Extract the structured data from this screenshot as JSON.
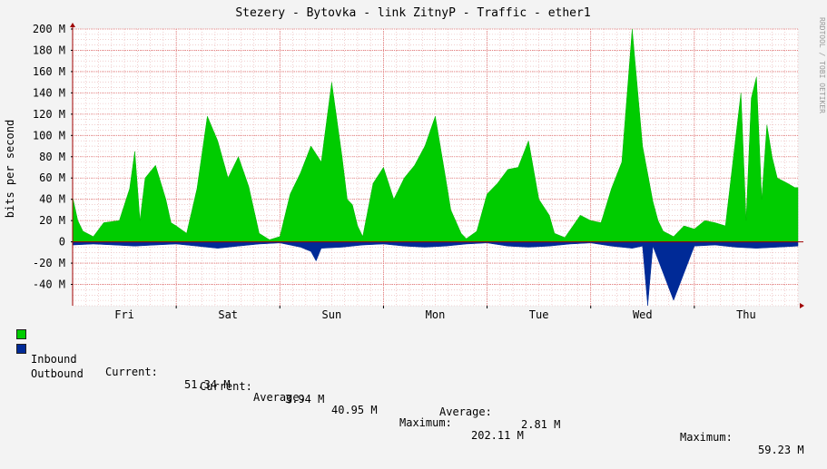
{
  "chart_data": {
    "type": "area",
    "title": "Stezery - Bytovka - link ZitnyP - Traffic - ether1",
    "ylabel": "bits per second",
    "watermark": "RRDTOOL / TOBI OETIKER",
    "yticks": [
      "200 M",
      "180 M",
      "160 M",
      "140 M",
      "120 M",
      "100 M",
      "80 M",
      "60 M",
      "40 M",
      "20 M",
      "0",
      "-20 M",
      "-40 M"
    ],
    "ytick_values": [
      200,
      180,
      160,
      140,
      120,
      100,
      80,
      60,
      40,
      20,
      0,
      -20,
      -40
    ],
    "ylim": [
      -60,
      200
    ],
    "xlim": [
      0,
      7
    ],
    "day_labels": [
      "Fri",
      "Sat",
      "Sun",
      "Mon",
      "Tue",
      "Wed",
      "Thu"
    ],
    "day_label_positions": [
      0.5,
      1.5,
      2.5,
      3.5,
      4.5,
      5.5,
      6.5
    ],
    "grid": true,
    "colors": {
      "inbound": "#00cc00",
      "outbound": "#002a97",
      "grid": "#e8b0b0",
      "axis": "#a00000",
      "background": "#ffffff",
      "canvas": "#f3f3f3"
    },
    "series": [
      {
        "name": "Inbound",
        "x": [
          0.0,
          0.05,
          0.1,
          0.2,
          0.3,
          0.45,
          0.55,
          0.6,
          0.65,
          0.7,
          0.8,
          0.9,
          0.95,
          1.0,
          1.1,
          1.2,
          1.3,
          1.4,
          1.5,
          1.6,
          1.7,
          1.8,
          1.9,
          2.0,
          2.1,
          2.2,
          2.3,
          2.4,
          2.5,
          2.6,
          2.65,
          2.7,
          2.75,
          2.8,
          2.9,
          3.0,
          3.1,
          3.2,
          3.3,
          3.4,
          3.5,
          3.6,
          3.65,
          3.75,
          3.8,
          3.9,
          4.0,
          4.1,
          4.2,
          4.3,
          4.4,
          4.5,
          4.6,
          4.65,
          4.75,
          4.9,
          5.0,
          5.1,
          5.2,
          5.3,
          5.4,
          5.5,
          5.6,
          5.65,
          5.7,
          5.8,
          5.9,
          6.0,
          6.1,
          6.2,
          6.3,
          6.45,
          6.5,
          6.55,
          6.6,
          6.65,
          6.7,
          6.75,
          6.8,
          6.9,
          6.97,
          7.0
        ],
        "values": [
          42,
          20,
          10,
          5,
          18,
          20,
          50,
          85,
          20,
          60,
          72,
          40,
          18,
          15,
          8,
          50,
          118,
          95,
          60,
          80,
          52,
          8,
          2,
          5,
          45,
          65,
          90,
          75,
          150,
          80,
          40,
          35,
          15,
          5,
          55,
          70,
          40,
          60,
          72,
          90,
          118,
          60,
          30,
          8,
          3,
          10,
          45,
          55,
          68,
          70,
          95,
          40,
          25,
          8,
          4,
          25,
          20,
          18,
          50,
          75,
          200,
          90,
          38,
          20,
          10,
          5,
          15,
          12,
          20,
          18,
          15,
          140,
          20,
          135,
          155,
          40,
          110,
          80,
          60,
          55,
          51,
          51
        ]
      },
      {
        "name": "Outbound",
        "x": [
          0.0,
          0.2,
          0.4,
          0.6,
          0.8,
          1.0,
          1.2,
          1.4,
          1.6,
          1.8,
          2.0,
          2.2,
          2.3,
          2.35,
          2.4,
          2.6,
          2.8,
          3.0,
          3.2,
          3.4,
          3.6,
          3.8,
          4.0,
          4.2,
          4.4,
          4.6,
          4.8,
          5.0,
          5.2,
          5.4,
          5.5,
          5.55,
          5.6,
          5.8,
          6.0,
          6.2,
          6.4,
          6.6,
          6.8,
          7.0
        ],
        "values": [
          3,
          2,
          3,
          4,
          3,
          2,
          4,
          6,
          4,
          2,
          1,
          5,
          9,
          18,
          6,
          5,
          3,
          2,
          4,
          5,
          4,
          2,
          1,
          4,
          5,
          4,
          2,
          1,
          4,
          6,
          4,
          60,
          4,
          55,
          4,
          3,
          5,
          6,
          5,
          4
        ]
      }
    ]
  },
  "legend": {
    "inbound": {
      "name": "Inbound",
      "current_label": "Current:",
      "current": "51.34 M",
      "average_label": "Average:",
      "average": "40.95 M",
      "maximum_label": "Maximum:",
      "maximum": "202.11 M"
    },
    "outbound": {
      "name": "Outbound",
      "current_label": "Current:",
      "current": "3.94 M",
      "average_label": "Average:",
      "average": "2.81 M",
      "maximum_label": "Maximum:",
      "maximum": "59.23 M"
    }
  }
}
